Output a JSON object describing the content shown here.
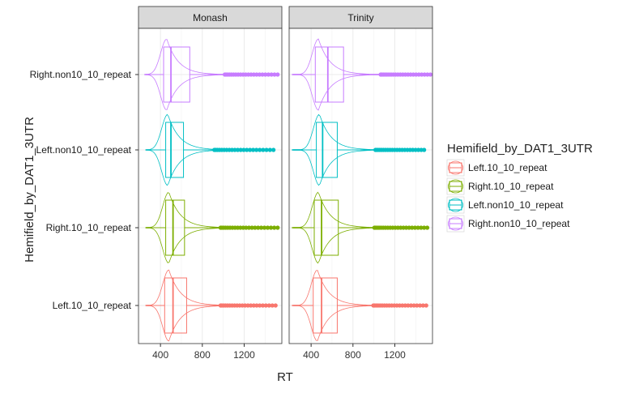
{
  "chart_data": {
    "type": "violin",
    "xlabel": "RT",
    "ylabel": "Hemifield_by_DAT1_3UTR",
    "x_ticks": [
      400,
      800,
      1200
    ],
    "x_range": [
      190,
      1560
    ],
    "grid": true,
    "legend_position": "right",
    "legend_title": "Hemifield_by_DAT1_3UTR",
    "categories": [
      "Left.10_10_repeat",
      "Right.10_10_repeat",
      "Left.non10_10_repeat",
      "Right.non10_10_repeat"
    ],
    "colors": {
      "Left.10_10_repeat": "#F8766D",
      "Right.10_10_repeat": "#7CAE00",
      "Left.non10_10_repeat": "#00BFC4",
      "Right.non10_10_repeat": "#C77CFF"
    },
    "panels": [
      {
        "strip": "Monash",
        "groups": [
          {
            "category": "Left.10_10_repeat",
            "whisker_low": 270,
            "q1": 440,
            "median": 520,
            "q3": 650,
            "whisker_high": 960,
            "outliers_end": 1500,
            "violin_min": 260,
            "violin_max": 1500,
            "violin_mode": 480
          },
          {
            "category": "Right.10_10_repeat",
            "whisker_low": 270,
            "q1": 450,
            "median": 520,
            "q3": 630,
            "whisker_high": 960,
            "outliers_end": 1520,
            "violin_min": 260,
            "violin_max": 1520,
            "violin_mode": 480
          },
          {
            "category": "Left.non10_10_repeat",
            "whisker_low": 270,
            "q1": 450,
            "median": 500,
            "q3": 620,
            "whisker_high": 900,
            "outliers_end": 1480,
            "violin_min": 260,
            "violin_max": 1480,
            "violin_mode": 470
          },
          {
            "category": "Right.non10_10_repeat",
            "whisker_low": 260,
            "q1": 430,
            "median": 500,
            "q3": 680,
            "whisker_high": 1000,
            "outliers_end": 1520,
            "violin_min": 250,
            "violin_max": 1520,
            "violin_mode": 460
          }
        ]
      },
      {
        "strip": "Trinity",
        "groups": [
          {
            "category": "Left.10_10_repeat",
            "whisker_low": 230,
            "q1": 420,
            "median": 500,
            "q3": 650,
            "whisker_high": 980,
            "outliers_end": 1500,
            "violin_min": 220,
            "violin_max": 1500,
            "violin_mode": 460
          },
          {
            "category": "Right.10_10_repeat",
            "whisker_low": 230,
            "q1": 430,
            "median": 500,
            "q3": 660,
            "whisker_high": 990,
            "outliers_end": 1510,
            "violin_min": 220,
            "violin_max": 1510,
            "violin_mode": 470
          },
          {
            "category": "Left.non10_10_repeat",
            "whisker_low": 230,
            "q1": 450,
            "median": 510,
            "q3": 650,
            "whisker_high": 1000,
            "outliers_end": 1480,
            "violin_min": 220,
            "violin_max": 1480,
            "violin_mode": 480
          },
          {
            "category": "Right.non10_10_repeat",
            "whisker_low": 230,
            "q1": 440,
            "median": 560,
            "q3": 710,
            "whisker_high": 1050,
            "outliers_end": 1540,
            "violin_min": 220,
            "violin_max": 1540,
            "violin_mode": 470
          }
        ]
      }
    ]
  }
}
